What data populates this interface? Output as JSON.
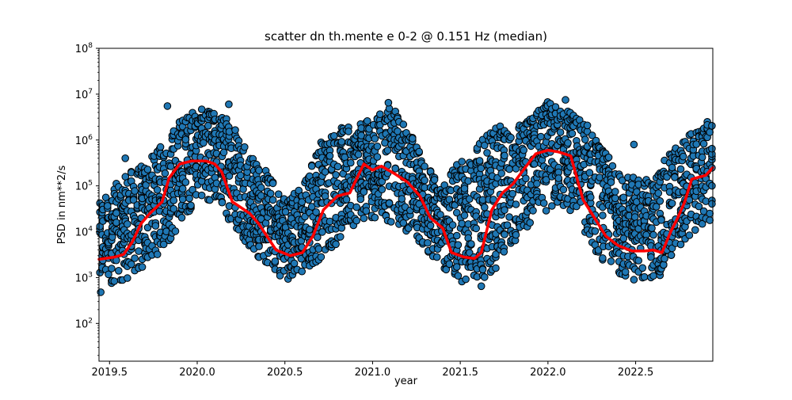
{
  "chart_data": {
    "type": "scatter",
    "title": "scatter dn th.mente e 0-2 @ 0.151 Hz (median)",
    "xlabel": "year",
    "ylabel": "PSD in nm**2/s",
    "xlim": [
      2019.44,
      2022.94
    ],
    "ylim": [
      15,
      100000000
    ],
    "yscale": "log",
    "grid": false,
    "x_ticks": [
      2019.5,
      2020.0,
      2020.5,
      2021.0,
      2021.5,
      2022.0,
      2022.5
    ],
    "x_tick_labels": [
      "2019.5",
      "2020.0",
      "2020.5",
      "2021.0",
      "2021.5",
      "2022.0",
      "2022.5"
    ],
    "y_ticks": [
      100,
      1000,
      10000,
      100000,
      1000000,
      10000000,
      100000000
    ],
    "y_tick_labels": [
      {
        "base": "10",
        "exp": "2"
      },
      {
        "base": "10",
        "exp": "3"
      },
      {
        "base": "10",
        "exp": "4"
      },
      {
        "base": "10",
        "exp": "5"
      },
      {
        "base": "10",
        "exp": "6"
      },
      {
        "base": "10",
        "exp": "7"
      },
      {
        "base": "10",
        "exp": "8"
      }
    ],
    "marker_color": "#1f77b4",
    "marker_edge_color": "#000000",
    "line_color": "#ff0000",
    "series": [
      {
        "kind": "scatter",
        "envelope": {
          "x": [
            2019.44,
            2019.5,
            2019.6,
            2019.7,
            2019.8,
            2019.9,
            2020.0,
            2020.1,
            2020.2,
            2020.3,
            2020.4,
            2020.5,
            2020.6,
            2020.7,
            2020.8,
            2020.9,
            2021.0,
            2021.1,
            2021.2,
            2021.3,
            2021.4,
            2021.5,
            2021.6,
            2021.7,
            2021.8,
            2021.9,
            2022.0,
            2022.1,
            2022.2,
            2022.3,
            2022.4,
            2022.5,
            2022.6,
            2022.7,
            2022.8,
            2022.94
          ],
          "low": [
            500,
            700,
            900,
            1500,
            4000,
            10000,
            60000,
            40000,
            15000,
            4000,
            1500,
            900,
            1000,
            2500,
            5000,
            15000,
            20000,
            15000,
            10000,
            4000,
            1500,
            800,
            800,
            1500,
            5000,
            15000,
            30000,
            30000,
            10000,
            2500,
            1200,
            900,
            900,
            1500,
            6000,
            20000
          ],
          "high": [
            40000,
            80000,
            200000,
            300000,
            800000,
            3000000,
            5000000,
            4000000,
            3000000,
            500000,
            200000,
            60000,
            100000,
            1000000,
            2000000,
            2000000,
            3000000,
            6000000,
            2000000,
            400000,
            100000,
            400000,
            800000,
            2000000,
            2000000,
            3000000,
            7000000,
            5000000,
            3000000,
            800000,
            200000,
            150000,
            150000,
            600000,
            1500000,
            3000000
          ]
        },
        "outliers": [
          {
            "x": 2019.59,
            "y": 400000
          },
          {
            "x": 2019.83,
            "y": 5500000
          },
          {
            "x": 2020.18,
            "y": 6000000
          },
          {
            "x": 2020.27,
            "y": 700000
          },
          {
            "x": 2021.09,
            "y": 6500000
          },
          {
            "x": 2022.1,
            "y": 7500000
          },
          {
            "x": 2022.49,
            "y": 800000
          },
          {
            "x": 2022.49,
            "y": 900
          },
          {
            "x": 2021.62,
            "y": 650
          },
          {
            "x": 2019.45,
            "y": 480
          }
        ]
      },
      {
        "kind": "line",
        "x": [
          2019.44,
          2019.53,
          2019.58,
          2019.63,
          2019.68,
          2019.73,
          2019.8,
          2019.84,
          2019.9,
          2019.97,
          2020.05,
          2020.1,
          2020.14,
          2020.2,
          2020.3,
          2020.35,
          2020.45,
          2020.53,
          2020.6,
          2020.66,
          2020.72,
          2020.8,
          2020.87,
          2020.95,
          2021.0,
          2021.05,
          2021.13,
          2021.2,
          2021.27,
          2021.33,
          2021.4,
          2021.45,
          2021.52,
          2021.58,
          2021.62,
          2021.68,
          2021.74,
          2021.8,
          2021.87,
          2021.93,
          2022.0,
          2022.06,
          2022.13,
          2022.2,
          2022.25,
          2022.33,
          2022.4,
          2022.48,
          2022.55,
          2022.6,
          2022.65,
          2022.7,
          2022.74,
          2022.78,
          2022.82,
          2022.9,
          2022.94
        ],
        "y": [
          2500,
          2800,
          3200,
          6000,
          15000,
          25000,
          45000,
          150000,
          300000,
          350000,
          350000,
          300000,
          200000,
          45000,
          25000,
          15000,
          4000,
          3000,
          3500,
          8000,
          30000,
          60000,
          70000,
          300000,
          220000,
          270000,
          180000,
          120000,
          60000,
          20000,
          12000,
          3500,
          2800,
          2600,
          3500,
          30000,
          70000,
          110000,
          250000,
          500000,
          600000,
          550000,
          450000,
          50000,
          25000,
          8000,
          5000,
          3800,
          3800,
          4000,
          3500,
          10000,
          20000,
          45000,
          140000,
          170000,
          250000
        ]
      }
    ]
  }
}
